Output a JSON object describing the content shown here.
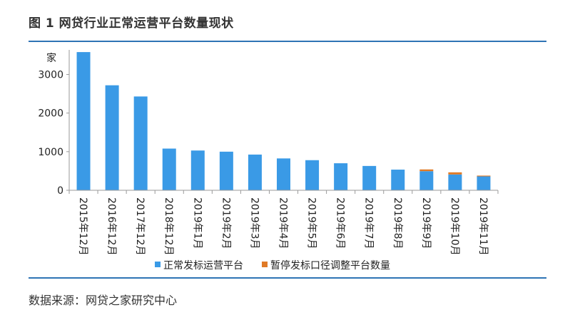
{
  "figure": {
    "title": "图 1  网贷行业正常运营平台数量现状",
    "source": "数据来源：网贷之家研究中心"
  },
  "colors": {
    "rule": "#2e74b5",
    "normal": "#3a9ae6",
    "suspended": "#e07a26",
    "axis": "#9a9a9a"
  },
  "chart_data": {
    "type": "bar",
    "stacked": true,
    "title": "",
    "ylabel": "家",
    "xlabel": "",
    "ylim": [
      0,
      3600
    ],
    "yticks": [
      0,
      1000,
      2000,
      3000
    ],
    "grid": false,
    "legend_position": "bottom",
    "categories": [
      "2015年12月",
      "2016年12月",
      "2017年12月",
      "2018年12月",
      "2019年1月",
      "2019年2月",
      "2019年3月",
      "2019年4月",
      "2019年5月",
      "2019年6月",
      "2019年7月",
      "2019年8月",
      "2019年9月",
      "2019年10月",
      "2019年11月"
    ],
    "series": [
      {
        "name": "正常发标运营平台",
        "color": "#3a9ae6",
        "values": [
          3580,
          2720,
          2430,
          1080,
          1030,
          1000,
          925,
          825,
          780,
          700,
          630,
          535,
          495,
          410,
          360
        ]
      },
      {
        "name": "暂停发标口径调整平台数量",
        "color": "#e07a26",
        "values": [
          0,
          0,
          0,
          0,
          0,
          0,
          0,
          0,
          0,
          0,
          0,
          0,
          45,
          55,
          20
        ]
      }
    ]
  }
}
